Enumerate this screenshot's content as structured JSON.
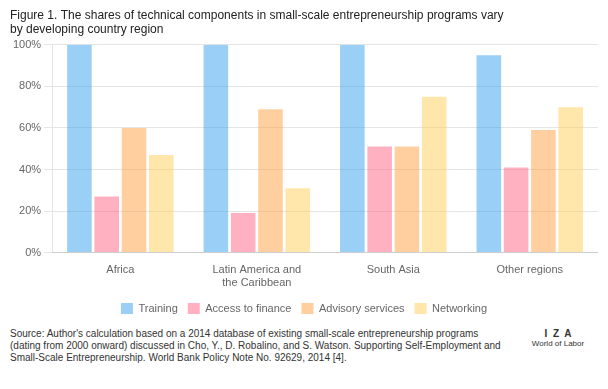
{
  "chart_data": {
    "type": "bar",
    "title": "Figure 1. The shares of technical components in small-scale entrepreneurship programs vary\nby developing country region",
    "categories": [
      "Africa",
      "Latin America and\nthe Caribbean",
      "South Asia",
      "Other regions"
    ],
    "series": [
      {
        "name": "Training",
        "values": [
          100,
          100,
          100,
          95
        ]
      },
      {
        "name": "Access to finance",
        "values": [
          27,
          19,
          51,
          41
        ]
      },
      {
        "name": "Advisory services",
        "values": [
          60,
          69,
          51,
          59
        ]
      },
      {
        "name": "Networking",
        "values": [
          47,
          31,
          75,
          70
        ]
      }
    ],
    "ylim": [
      0,
      100
    ],
    "yticks": [
      {
        "value": 0,
        "label": "0%"
      },
      {
        "value": 20,
        "label": "20%"
      },
      {
        "value": 40,
        "label": "40%"
      },
      {
        "value": 60,
        "label": "60%"
      },
      {
        "value": 80,
        "label": "80%"
      },
      {
        "value": 100,
        "label": "100%"
      }
    ],
    "grid": true,
    "legend": "bottom",
    "annotations": [
      "Source: Author's calculation based on a 2014 database of existing small-scale entrepreneurship programs (dating from 2000 onward) discussed in Cho, Y., D. Robalino, and S. Watson. Supporting Self-Employment and Small-Scale Entrepreneurship. World Bank Policy Note No. 92629, 2014 [4].",
      "I  Z  A",
      "World of Labor"
    ]
  }
}
